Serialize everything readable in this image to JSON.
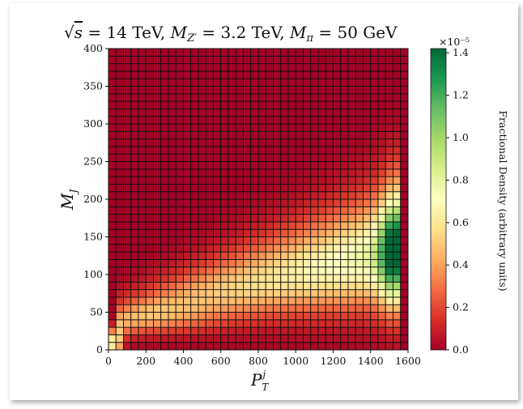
{
  "chart_data": {
    "type": "heatmap",
    "title": "√s = 14 TeV, M_Z′ = 3.2 TeV, M_π = 50 GeV",
    "title_parts": {
      "s_label": "s",
      "energy": " = 14 TeV, ",
      "mz_label": "M",
      "mz_sub": "Z′",
      "mz_value": " = 3.2 TeV, ",
      "mpi_label": "M",
      "mpi_sub": "π",
      "mpi_value": " = 50 GeV"
    },
    "xlabel": "P_T^j",
    "xlabel_parts": {
      "main": "P",
      "sub": "T",
      "sup": "j"
    },
    "ylabel": "M_J",
    "ylabel_parts": {
      "main": "M",
      "sub": "J"
    },
    "colorbar_label": "Fractional Density (arbitrary units)",
    "colorbar_scale_text": "×10⁻⁵",
    "colorbar_range": [
      0,
      1.42
    ],
    "colorbar_ticks": [
      "0.0",
      "0.2",
      "0.4",
      "0.6",
      "0.8",
      "1.0",
      "1.2",
      "1.4"
    ],
    "colormap": "RdYlGn",
    "xlim": [
      0,
      1600
    ],
    "ylim": [
      0,
      400
    ],
    "x_ticks": [
      "0",
      "200",
      "400",
      "600",
      "800",
      "1000",
      "1200",
      "1400",
      "1600"
    ],
    "y_ticks": [
      "0",
      "50",
      "100",
      "150",
      "200",
      "250",
      "300",
      "350",
      "400"
    ],
    "x_bin_edges": [
      0,
      1600,
      40
    ],
    "y_bin_edges": [
      0,
      400,
      40
    ],
    "x_data_max": 1560,
    "grid": true,
    "description_of_density": [
      {
        "region": "ridge",
        "mass_vs_pt": "rises from ~40 at pT 100 to ~165 at pT 1500"
      },
      {
        "region": "peak",
        "pt": 1520,
        "mass": 165,
        "value": 1.4
      },
      {
        "region": "low-corner",
        "pt": 40,
        "mass": 15,
        "value": 0.7
      }
    ]
  },
  "colors": {
    "background": "#ffffff",
    "grid_line": "#111111"
  }
}
